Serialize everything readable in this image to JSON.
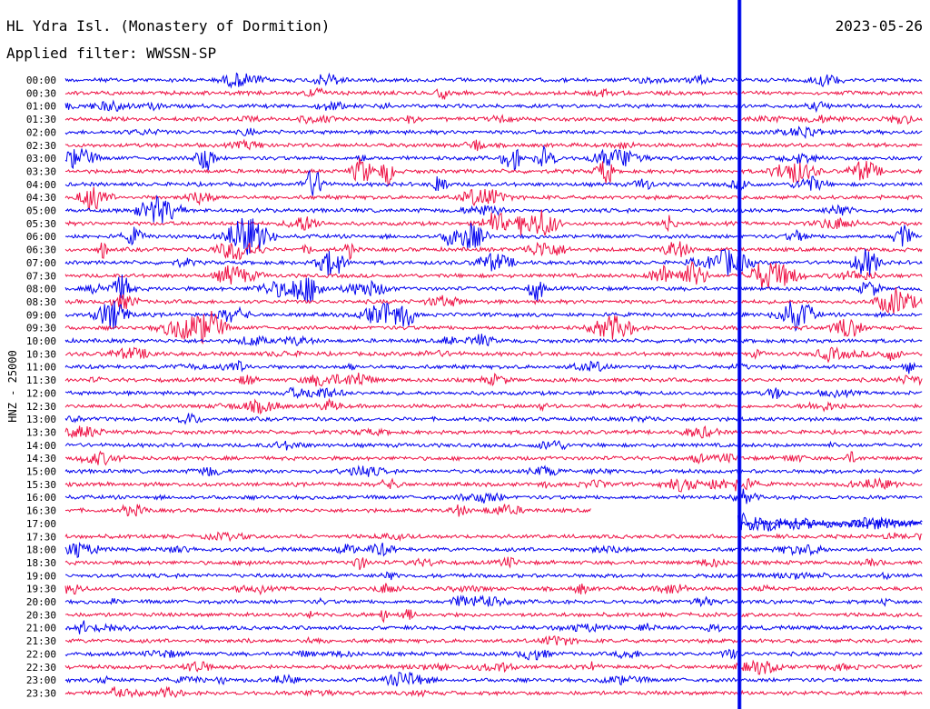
{
  "header": {
    "station": "HL Ydra Isl. (Monastery of Dormition)",
    "date": "2023-05-26",
    "filter": "Applied filter: WWSSN-SP"
  },
  "chart_data": {
    "type": "line",
    "title": "HL Ydra Isl. (Monastery of Dormition)",
    "subtitle": "Applied filter: WWSSN-SP",
    "date": "2023-05-26",
    "ylabel": "HNZ - 25000",
    "xlabel": "",
    "tick_labels": [
      "00:00",
      "00:30",
      "01:00",
      "01:30",
      "02:00",
      "02:30",
      "03:00",
      "03:30",
      "04:00",
      "04:30",
      "05:00",
      "05:30",
      "06:00",
      "06:30",
      "07:00",
      "07:30",
      "08:00",
      "08:30",
      "09:00",
      "09:30",
      "10:00",
      "10:30",
      "11:00",
      "11:30",
      "12:00",
      "12:30",
      "13:00",
      "13:30",
      "14:00",
      "14:30",
      "15:00",
      "15:30",
      "16:00",
      "16:30",
      "17:00",
      "17:30",
      "18:00",
      "18:30",
      "19:00",
      "19:30",
      "20:00",
      "20:30",
      "21:00",
      "21:30",
      "22:00",
      "22:30",
      "23:00",
      "23:30"
    ],
    "trace_minutes": 30,
    "series_colors": [
      "#0000ee",
      "#ee1144"
    ],
    "data_gap": {
      "trace": "16:30",
      "from_minute": 18.4,
      "to_minute": 30
    },
    "data_gap_2": {
      "trace": "17:00",
      "from_minute": 0,
      "to_minute": 23.6
    },
    "major_event": {
      "time": "17:23:30",
      "note": "large amplitude arrival visible across all traces"
    },
    "legend": "none",
    "grid": false
  },
  "colors": {
    "blue": "#0000ee",
    "red": "#ee1144",
    "background": "#ffffff"
  }
}
